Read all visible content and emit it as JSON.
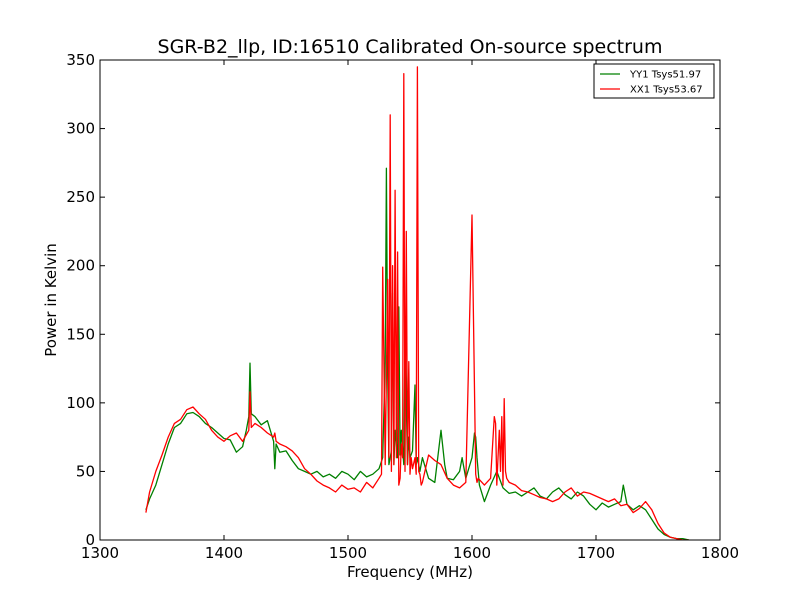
{
  "chart_data": {
    "type": "line",
    "title": "SGR-B2_llp, ID:16510 Calibrated On-source spectrum",
    "xlabel": "Frequency (MHz)",
    "ylabel": "Power in Kelvin",
    "xlim": [
      1300,
      1800
    ],
    "ylim": [
      0,
      350
    ],
    "xticks": [
      1300,
      1400,
      1500,
      1600,
      1700,
      1800
    ],
    "yticks": [
      0,
      50,
      100,
      150,
      200,
      250,
      300,
      350
    ],
    "grid": false,
    "legend_position": "top-right",
    "series": [
      {
        "name": "YY1 Tsys51.97",
        "color": "#008000",
        "x": [
          1337,
          1340,
          1345,
          1350,
          1355,
          1360,
          1365,
          1370,
          1375,
          1380,
          1385,
          1390,
          1395,
          1400,
          1405,
          1410,
          1415,
          1418,
          1420,
          1421,
          1422,
          1425,
          1430,
          1435,
          1440,
          1441,
          1442,
          1445,
          1450,
          1455,
          1460,
          1465,
          1470,
          1475,
          1480,
          1485,
          1490,
          1495,
          1500,
          1505,
          1510,
          1515,
          1520,
          1525,
          1528,
          1530,
          1531,
          1532,
          1533,
          1534,
          1535,
          1536,
          1537,
          1538,
          1540,
          1541,
          1542,
          1543,
          1545,
          1546,
          1548,
          1549,
          1550,
          1552,
          1554,
          1555,
          1556,
          1558,
          1560,
          1565,
          1570,
          1575,
          1578,
          1580,
          1585,
          1590,
          1592,
          1595,
          1600,
          1602,
          1603,
          1604,
          1606,
          1610,
          1615,
          1620,
          1625,
          1630,
          1635,
          1640,
          1645,
          1650,
          1655,
          1660,
          1665,
          1670,
          1675,
          1680,
          1685,
          1690,
          1695,
          1700,
          1705,
          1710,
          1715,
          1720,
          1722,
          1725,
          1730,
          1735,
          1740,
          1745,
          1750,
          1755,
          1760,
          1765,
          1770,
          1775
        ],
        "y": [
          22,
          30,
          40,
          55,
          70,
          82,
          85,
          92,
          93,
          90,
          85,
          82,
          78,
          74,
          73,
          64,
          68,
          80,
          90,
          129,
          92,
          90,
          84,
          87,
          72,
          52,
          70,
          64,
          65,
          58,
          52,
          50,
          48,
          50,
          46,
          48,
          45,
          50,
          48,
          44,
          50,
          46,
          48,
          52,
          60,
          130,
          271,
          120,
          55,
          60,
          65,
          180,
          55,
          80,
          60,
          170,
          62,
          80,
          55,
          150,
          55,
          75,
          60,
          65,
          113,
          55,
          60,
          50,
          60,
          45,
          42,
          80,
          55,
          45,
          44,
          50,
          60,
          45,
          60,
          78,
          75,
          60,
          40,
          28,
          40,
          50,
          38,
          34,
          35,
          32,
          35,
          38,
          32,
          30,
          35,
          38,
          33,
          30,
          35,
          32,
          26,
          22,
          27,
          24,
          26,
          28,
          40,
          26,
          22,
          25,
          22,
          15,
          8,
          4,
          2,
          1,
          1,
          0
        ]
      },
      {
        "name": "XX1 Tsys53.67",
        "color": "#ff0000",
        "x": [
          1337,
          1340,
          1345,
          1350,
          1355,
          1360,
          1365,
          1370,
          1375,
          1380,
          1385,
          1390,
          1395,
          1400,
          1405,
          1410,
          1415,
          1420,
          1421,
          1422,
          1425,
          1430,
          1435,
          1440,
          1441,
          1442,
          1445,
          1450,
          1455,
          1460,
          1465,
          1470,
          1475,
          1480,
          1485,
          1490,
          1495,
          1500,
          1505,
          1510,
          1515,
          1520,
          1525,
          1527,
          1528,
          1530,
          1531,
          1532,
          1533,
          1534,
          1535,
          1536,
          1537,
          1538,
          1539,
          1540,
          1541,
          1542,
          1543,
          1544,
          1545,
          1546,
          1547,
          1548,
          1549,
          1550,
          1551,
          1552,
          1554,
          1555,
          1556,
          1557,
          1558,
          1559,
          1560,
          1565,
          1570,
          1575,
          1580,
          1585,
          1590,
          1595,
          1600,
          1603,
          1604,
          1605,
          1610,
          1615,
          1618,
          1619,
          1620,
          1621,
          1622,
          1623,
          1624,
          1625,
          1626,
          1627,
          1628,
          1630,
          1635,
          1640,
          1645,
          1650,
          1655,
          1660,
          1665,
          1670,
          1675,
          1680,
          1685,
          1690,
          1695,
          1700,
          1705,
          1710,
          1715,
          1720,
          1725,
          1730,
          1735,
          1740,
          1745,
          1750,
          1755,
          1760,
          1765,
          1770,
          1775
        ],
        "y": [
          20,
          35,
          50,
          62,
          75,
          85,
          88,
          95,
          97,
          92,
          88,
          80,
          75,
          72,
          76,
          78,
          72,
          80,
          108,
          82,
          85,
          82,
          78,
          75,
          78,
          72,
          70,
          68,
          65,
          60,
          52,
          48,
          43,
          40,
          38,
          35,
          40,
          37,
          38,
          35,
          42,
          38,
          45,
          48,
          199,
          55,
          120,
          190,
          60,
          310,
          50,
          200,
          55,
          255,
          60,
          210,
          40,
          45,
          70,
          60,
          340,
          50,
          225,
          55,
          130,
          48,
          60,
          52,
          60,
          48,
          345,
          50,
          48,
          40,
          42,
          62,
          58,
          55,
          45,
          40,
          38,
          42,
          237,
          48,
          42,
          45,
          40,
          45,
          90,
          85,
          40,
          60,
          80,
          50,
          90,
          40,
          103,
          50,
          45,
          42,
          40,
          36,
          35,
          33,
          31,
          30,
          28,
          30,
          35,
          38,
          32,
          35,
          34,
          32,
          30,
          28,
          30,
          25,
          26,
          20,
          23,
          28,
          22,
          12,
          5,
          2,
          1,
          0,
          0
        ]
      }
    ]
  }
}
